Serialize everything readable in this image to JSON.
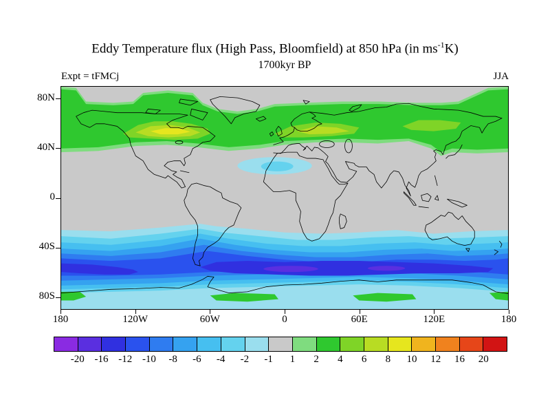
{
  "header": {
    "title_prefix": "Eddy Temperature flux (High Pass, Bloomfield) at 850 hPa (in ms",
    "title_sup": "-1",
    "title_suffix": "K)",
    "subtitle": "1700kyr BP",
    "experiment_label": "Expt = tFMCj",
    "season_label": "JJA"
  },
  "axes": {
    "lat_ticks": [
      {
        "label": "80N",
        "value": 80
      },
      {
        "label": "40N",
        "value": 40
      },
      {
        "label": "0",
        "value": 0
      },
      {
        "label": "40S",
        "value": -40
      },
      {
        "label": "80S",
        "value": -80
      }
    ],
    "lon_ticks": [
      {
        "label": "180",
        "value": -180
      },
      {
        "label": "120W",
        "value": -120
      },
      {
        "label": "60W",
        "value": -60
      },
      {
        "label": "0",
        "value": 0
      },
      {
        "label": "60E",
        "value": 60
      },
      {
        "label": "120E",
        "value": 120
      },
      {
        "label": "180",
        "value": 180
      }
    ]
  },
  "colorbar": {
    "labels": [
      "-20",
      "-16",
      "-12",
      "-10",
      "-8",
      "-6",
      "-4",
      "-2",
      "-1",
      "1",
      "2",
      "4",
      "6",
      "8",
      "10",
      "12",
      "16",
      "20"
    ],
    "colors": [
      "#8a2be2",
      "#5a2fe0",
      "#3030e0",
      "#2a52ee",
      "#2f7cf0",
      "#35a2f0",
      "#46bff0",
      "#64d2ee",
      "#9adeee",
      "#c9c9c9",
      "#7fdc7f",
      "#2fc82f",
      "#7fd427",
      "#b8dc23",
      "#e6e61e",
      "#f0b41e",
      "#f0821e",
      "#e64619",
      "#d21414"
    ]
  },
  "chart_data": {
    "type": "heatmap",
    "variant": "filled-contour global map (shaded contours over coastlines)",
    "projection": "equirectangular lat-lon",
    "title": "Eddy Temperature flux (High Pass, Bloomfield) at 850 hPa (in ms-1 K)",
    "subtitle": "1700kyr BP",
    "experiment": "tFMCj",
    "season": "JJA",
    "units": "ms-1 K",
    "lon_range": [
      -180,
      180
    ],
    "lat_range": [
      -90,
      90
    ],
    "contour_levels": [
      -20,
      -16,
      -12,
      -10,
      -8,
      -6,
      -4,
      -2,
      -1,
      1,
      2,
      4,
      6,
      8,
      10,
      12,
      16,
      20
    ],
    "neutral_band": {
      "range": [
        -1,
        1
      ],
      "color": "gray"
    },
    "features": [
      {
        "region": "Northern Hemisphere mid-latitude band, ~35N-80N, all longitudes",
        "sign": "positive",
        "typical_value": "2 to 4",
        "maxima": [
          {
            "area": "central/eastern Canada (~100W-70W, 48N-58N)",
            "value": "8 to 10"
          },
          {
            "area": "eastern Europe / western Russia (~10E-55E, 50N-60N)",
            "value": "6 to 8"
          },
          {
            "area": "eastern Siberia (~100E-145E, 52N-62N)",
            "value": "4 to 6"
          }
        ]
      },
      {
        "region": "tropics, ~30N-25S",
        "sign": "near zero",
        "typical_value": "-1 to 1 (gray)"
      },
      {
        "region": "subtropical North Atlantic / northwest Africa (~40W-25E, 16N-33N)",
        "sign": "weak negative",
        "typical_value": "-2 to -1"
      },
      {
        "region": "Southern Hemisphere mid-latitude band, ~25S-78S, all longitudes",
        "sign": "negative",
        "typical_value": "-2 to -10",
        "minima": [
          {
            "area": "circumpolar belt ~50S-62S, strongest 60W-170E",
            "value": "-12 to -16"
          },
          {
            "area": "South Pacific ~53S-62S near 180-115W",
            "value": "-12 to -16"
          }
        ]
      },
      {
        "region": "Antarctic coastal patches (~78S-85S, near 55W-5E, 55E-105E and near the date line)",
        "sign": "weak positive",
        "typical_value": "1 to 2"
      }
    ],
    "zonal_structure_estimate": [
      {
        "lat": 85,
        "value": 1
      },
      {
        "lat": 70,
        "value": 2
      },
      {
        "lat": 55,
        "value": 4
      },
      {
        "lat": 45,
        "value": 2
      },
      {
        "lat": 30,
        "value": 0
      },
      {
        "lat": 0,
        "value": 0
      },
      {
        "lat": -20,
        "value": -1
      },
      {
        "lat": -30,
        "value": -3
      },
      {
        "lat": -40,
        "value": -6
      },
      {
        "lat": -50,
        "value": -10
      },
      {
        "lat": -57,
        "value": -13
      },
      {
        "lat": -65,
        "value": -7
      },
      {
        "lat": -75,
        "value": -2
      },
      {
        "lat": -85,
        "value": 1
      }
    ],
    "legend_position": "horizontal colorbar below map"
  }
}
